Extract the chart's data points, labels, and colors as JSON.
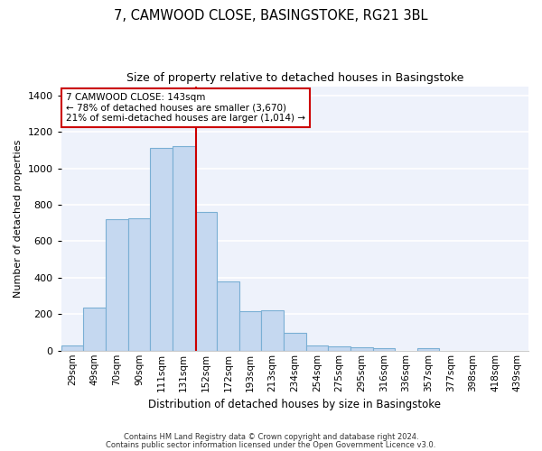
{
  "title": "7, CAMWOOD CLOSE, BASINGSTOKE, RG21 3BL",
  "subtitle": "Size of property relative to detached houses in Basingstoke",
  "xlabel": "Distribution of detached houses by size in Basingstoke",
  "ylabel": "Number of detached properties",
  "categories": [
    "29sqm",
    "49sqm",
    "70sqm",
    "90sqm",
    "111sqm",
    "131sqm",
    "152sqm",
    "172sqm",
    "193sqm",
    "213sqm",
    "234sqm",
    "254sqm",
    "275sqm",
    "295sqm",
    "316sqm",
    "336sqm",
    "357sqm",
    "377sqm",
    "398sqm",
    "418sqm",
    "439sqm"
  ],
  "values": [
    30,
    235,
    720,
    725,
    1110,
    1120,
    760,
    380,
    215,
    220,
    100,
    30,
    22,
    18,
    14,
    0,
    14,
    0,
    0,
    0,
    0
  ],
  "bar_color": "#c5d8f0",
  "bar_edge_color": "#7aafd4",
  "background_color": "#eef2fb",
  "grid_color": "#ffffff",
  "vline_color": "#cc0000",
  "annotation_text": "7 CAMWOOD CLOSE: 143sqm\n← 78% of detached houses are smaller (3,670)\n21% of semi-detached houses are larger (1,014) →",
  "annotation_box_color": "#cc0000",
  "ylim": [
    0,
    1450
  ],
  "yticks": [
    0,
    200,
    400,
    600,
    800,
    1000,
    1200,
    1400
  ],
  "footer1": "Contains HM Land Registry data © Crown copyright and database right 2024.",
  "footer2": "Contains public sector information licensed under the Open Government Licence v3.0.",
  "title_fontsize": 10.5,
  "subtitle_fontsize": 9,
  "tick_fontsize": 7.5,
  "ytick_fontsize": 8,
  "xlabel_fontsize": 8.5,
  "ylabel_fontsize": 8,
  "footer_fontsize": 6,
  "annotation_fontsize": 7.5
}
